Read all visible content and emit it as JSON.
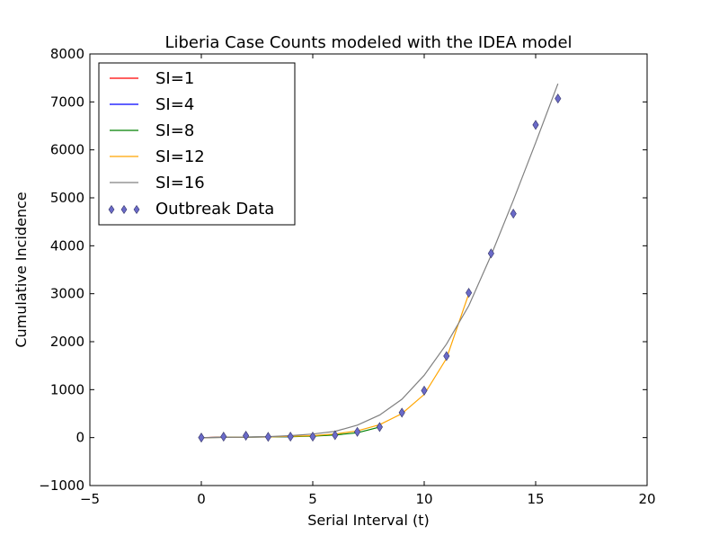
{
  "chart_data": {
    "type": "line",
    "title": "Liberia Case Counts modeled with the IDEA model",
    "xlabel": "Serial Interval (t)",
    "ylabel": "Cumulative Incidence",
    "xlim": [
      -5,
      20
    ],
    "ylim": [
      -1000,
      8000
    ],
    "xticks": [
      -5,
      0,
      5,
      10,
      15,
      20
    ],
    "yticks": [
      -1000,
      0,
      1000,
      2000,
      3000,
      4000,
      5000,
      6000,
      7000,
      8000
    ],
    "xtick_labels": [
      "−5",
      "0",
      "5",
      "10",
      "15",
      "20"
    ],
    "ytick_labels": [
      "−1000",
      "0",
      "1000",
      "2000",
      "3000",
      "4000",
      "5000",
      "6000",
      "7000",
      "8000"
    ],
    "grid": false,
    "legend_position": "top-left",
    "series": [
      {
        "name": "SI=1",
        "kind": "line",
        "color": "#ff0000",
        "x": [
          0,
          1
        ],
        "y": [
          0,
          10
        ]
      },
      {
        "name": "SI=4",
        "kind": "line",
        "color": "#0000ff",
        "x": [
          0,
          1,
          2,
          3,
          4
        ],
        "y": [
          0,
          5,
          10,
          15,
          20
        ]
      },
      {
        "name": "SI=8",
        "kind": "line",
        "color": "#008000",
        "x": [
          0,
          1,
          2,
          3,
          4,
          5,
          6,
          7,
          8
        ],
        "y": [
          0,
          5,
          10,
          15,
          20,
          30,
          55,
          100,
          220
        ]
      },
      {
        "name": "SI=12",
        "kind": "line",
        "color": "#ffa500",
        "x": [
          0,
          1,
          2,
          3,
          4,
          5,
          6,
          7,
          8,
          9,
          10,
          11,
          12
        ],
        "y": [
          0,
          5,
          10,
          15,
          25,
          40,
          75,
          140,
          270,
          500,
          900,
          1650,
          3000
        ]
      },
      {
        "name": "SI=16",
        "kind": "line",
        "color": "#808080",
        "x": [
          0,
          1,
          2,
          3,
          4,
          5,
          6,
          7,
          8,
          9,
          10,
          11,
          12,
          13,
          14,
          15,
          16
        ],
        "y": [
          0,
          5,
          10,
          20,
          40,
          75,
          130,
          260,
          470,
          800,
          1300,
          1950,
          2750,
          3800,
          4950,
          6150,
          7380
        ]
      },
      {
        "name": "Outbreak Data",
        "kind": "scatter",
        "marker": "diamond",
        "color": "#6a6ac8",
        "x": [
          0,
          1,
          2,
          3,
          4,
          5,
          6,
          7,
          8,
          9,
          10,
          11,
          12,
          13,
          14,
          15,
          16
        ],
        "y": [
          0,
          20,
          40,
          15,
          20,
          20,
          50,
          120,
          220,
          520,
          980,
          1700,
          3020,
          3840,
          4670,
          6520,
          7070
        ]
      }
    ]
  }
}
